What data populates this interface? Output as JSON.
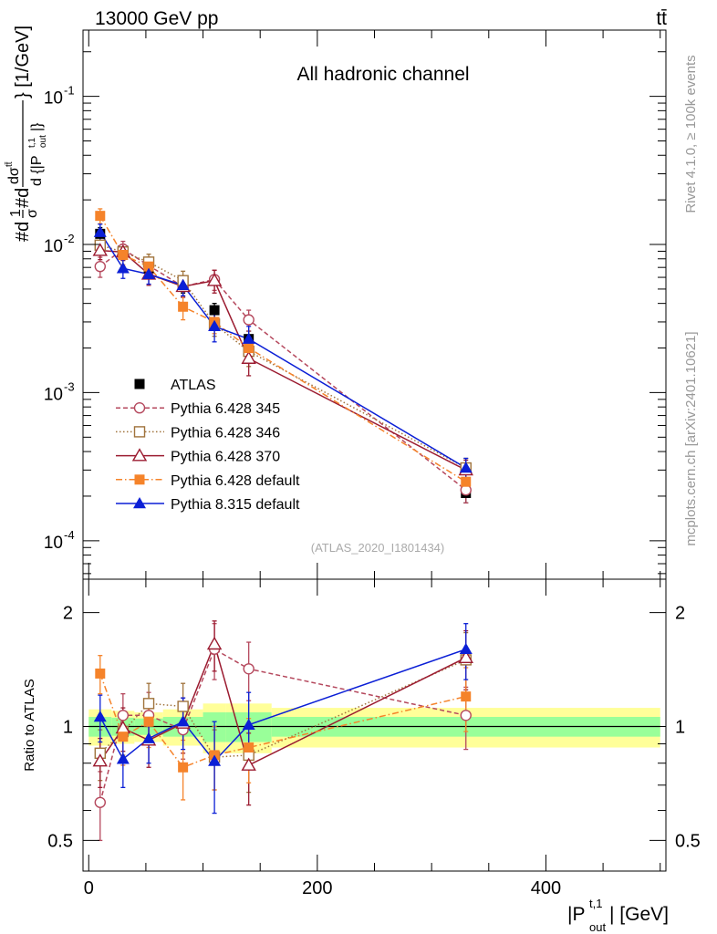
{
  "header": {
    "energy_label": "13000 GeV pp",
    "process_label": "tt̄",
    "channel_label": "All hadronic channel",
    "analysis_id": "(ATLAS_2020_I1801434)",
    "side_label_top": "Rivet 4.1.0, ≥ 100k events",
    "side_label_bottom": "mcplots.cern.ch [arXiv:2401.10621]"
  },
  "colors": {
    "data": "#000000",
    "p345": "#b5485d",
    "p346": "#a0733c",
    "p370": "#9b1b30",
    "p6def": "#f5832a",
    "p8def": "#0b1fd6",
    "band_inner": "#99ff99",
    "band_outer": "#ffff99"
  },
  "chart_data": [
    {
      "type": "scatter",
      "panel": "main",
      "yscale": "log",
      "xlim": [
        -5,
        505
      ],
      "ylim": [
        5.5e-05,
        0.28
      ],
      "ylabel": "#d1/σ#dσ/d{|P_out^t,1|} [1/GeV]",
      "ytick_labels": [
        "10^-4",
        "10^-3",
        "10^-2",
        "10^-1"
      ],
      "x": [
        10,
        30,
        52.5,
        82.5,
        110,
        140,
        330
      ],
      "series": [
        {
          "key": "data",
          "name": "ATLAS",
          "marker": "square-filled",
          "line": "none",
          "values": [
            0.0118,
            0.0091,
            0.0069,
            0.0052,
            0.0036,
            0.0023,
            0.00021
          ],
          "err": [
            0.0012,
            0.0009,
            0.0006,
            0.0005,
            0.0004,
            0.0003,
            3e-05
          ]
        },
        {
          "key": "p345",
          "name": "Pythia 6.428 345",
          "marker": "circle-open",
          "line": "dashed",
          "values": [
            0.0071,
            0.0093,
            0.0072,
            0.0052,
            0.0058,
            0.0031,
            0.00022
          ],
          "err": [
            0.0011,
            0.0012,
            0.001,
            0.0008,
            0.0009,
            0.0005,
            4e-05
          ]
        },
        {
          "key": "p346",
          "name": "Pythia 6.428 346",
          "marker": "square-open",
          "line": "dotted",
          "values": [
            0.0099,
            0.0089,
            0.0076,
            0.0057,
            0.0029,
            0.0019,
            0.00031
          ],
          "err": [
            0.0013,
            0.0011,
            0.001,
            0.0009,
            0.0005,
            0.0004,
            5e-05
          ]
        },
        {
          "key": "p370",
          "name": "Pythia 6.428 370",
          "marker": "triangle-open",
          "line": "solid",
          "values": [
            0.0091,
            0.0089,
            0.0063,
            0.0052,
            0.0057,
            0.0017,
            0.0003
          ],
          "err": [
            0.0012,
            0.0011,
            0.001,
            0.0008,
            0.001,
            0.0004,
            5e-05
          ]
        },
        {
          "key": "p6def",
          "name": "Pythia 6.428 default",
          "marker": "square-filled",
          "line": "dashdot",
          "values": [
            0.0156,
            0.0085,
            0.0071,
            0.0038,
            0.003,
            0.002,
            0.00025
          ],
          "err": [
            0.0018,
            0.0012,
            0.001,
            0.0007,
            0.0005,
            0.0004,
            4e-05
          ]
        },
        {
          "key": "p8def",
          "name": "Pythia 8.315 default",
          "marker": "triangle-filled",
          "line": "solid",
          "values": [
            0.0121,
            0.0069,
            0.0063,
            0.0053,
            0.0028,
            0.0023,
            0.00031
          ],
          "err": [
            0.0016,
            0.001,
            0.0009,
            0.0008,
            0.0006,
            0.0005,
            5e-05
          ]
        }
      ]
    },
    {
      "type": "scatter",
      "panel": "ratio",
      "yscale": "log",
      "xlim": [
        -5,
        505
      ],
      "ylim": [
        0.415,
        2.45
      ],
      "ylabel": "Ratio to ATLAS",
      "xlabel": "|P_out^t,1| [GeV]",
      "xticks": [
        0,
        200,
        400
      ],
      "xtick_labels": [
        "0",
        "200",
        "400"
      ],
      "yticks": [
        0.5,
        1,
        2
      ],
      "ytick_labels": [
        "0.5",
        "1",
        "2"
      ],
      "band_edges": [
        0,
        20,
        40,
        65,
        100,
        120,
        160,
        500
      ],
      "band_inner": [
        0.06,
        0.055,
        0.05,
        0.06,
        0.09,
        0.09,
        0.06
      ],
      "band_outer": [
        0.11,
        0.1,
        0.09,
        0.11,
        0.15,
        0.15,
        0.12
      ],
      "x": [
        10,
        30,
        52.5,
        82.5,
        110,
        140,
        330
      ],
      "series": [
        {
          "key": "p345",
          "values": [
            0.63,
            1.07,
            1.07,
            0.98,
            1.6,
            1.42,
            1.07
          ],
          "err": [
            0.13,
            0.15,
            0.16,
            0.16,
            0.27,
            0.25,
            0.2
          ]
        },
        {
          "key": "p346",
          "values": [
            0.85,
            0.97,
            1.15,
            1.13,
            0.83,
            0.84,
            1.5
          ],
          "err": [
            0.13,
            0.13,
            0.15,
            0.17,
            0.15,
            0.17,
            0.27
          ]
        },
        {
          "key": "p370",
          "values": [
            0.81,
            0.99,
            0.92,
            1.02,
            1.65,
            0.79,
            1.52
          ],
          "err": [
            0.12,
            0.13,
            0.14,
            0.17,
            0.25,
            0.17,
            0.27
          ]
        },
        {
          "key": "p6def",
          "values": [
            1.38,
            0.94,
            1.03,
            0.78,
            0.84,
            0.88,
            1.2
          ],
          "err": [
            0.16,
            0.15,
            0.15,
            0.14,
            0.16,
            0.17,
            0.23
          ]
        },
        {
          "key": "p8def",
          "values": [
            1.06,
            0.82,
            0.93,
            1.03,
            0.81,
            1.01,
            1.6
          ],
          "err": [
            0.15,
            0.13,
            0.13,
            0.16,
            0.22,
            0.22,
            0.27
          ]
        }
      ]
    }
  ]
}
